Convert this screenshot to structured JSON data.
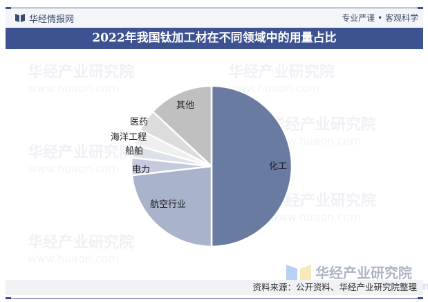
{
  "header": {
    "brand": "华经情报网",
    "slogan": "专业严谨 • 客观科学",
    "brand_icon": "book-icon"
  },
  "title": "2022年我国钛加工材在不同领域中的用量占比",
  "watermark": {
    "name": "华经产业研究院",
    "url": "www.huaon.com"
  },
  "footer": {
    "source": "资料来源：公开资料、华经产业研究院整理"
  },
  "colors": {
    "title_band": "#3d5391",
    "accent_line": "#3c5188"
  },
  "chart_data": {
    "type": "pie",
    "title": "2022年我国钛加工材在不同领域中的用量占比",
    "start_angle_deg": 0,
    "direction": "clockwise",
    "legend": "none (category labels drawn on/near slices)",
    "slices": [
      {
        "label": "化工",
        "value": 50.0,
        "color": "#6a7ba1"
      },
      {
        "label": "航空行业",
        "value": 23.2,
        "color": "#a9b3cb"
      },
      {
        "label": "电力",
        "value": 3.5,
        "color": "#c5cbdc"
      },
      {
        "label": "船舶",
        "value": 2.6,
        "color": "#dde1ea"
      },
      {
        "label": "海洋工程",
        "value": 3.2,
        "color": "#efefef"
      },
      {
        "label": "医药",
        "value": 4.4,
        "color": "#dcdcdc"
      },
      {
        "label": "其他",
        "value": 13.1,
        "color": "#c0c0c0"
      }
    ],
    "categories": [
      "化工",
      "航空行业",
      "电力",
      "船舶",
      "海洋工程",
      "医药",
      "其他"
    ],
    "values": [
      50.0,
      23.2,
      3.5,
      2.6,
      3.2,
      4.4,
      13.1
    ],
    "unit": "%"
  }
}
